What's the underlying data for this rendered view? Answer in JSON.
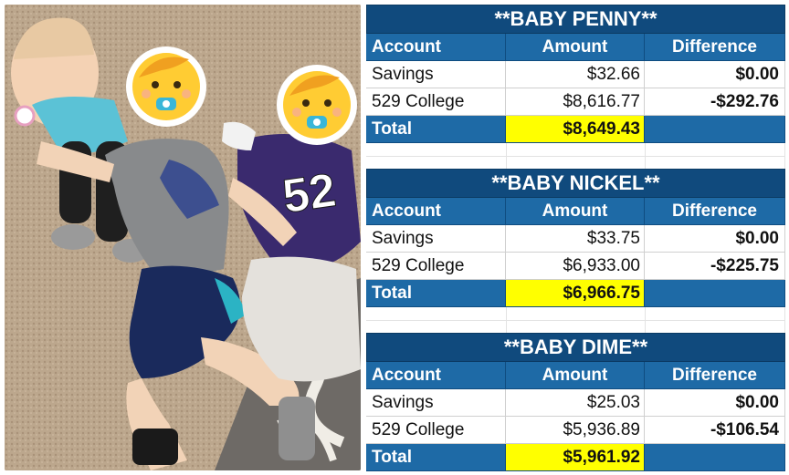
{
  "tables": [
    {
      "title": "**BABY PENNY**",
      "headers": [
        "Account",
        "Amount",
        "Difference"
      ],
      "rows": [
        {
          "account": "Savings",
          "amount": "$32.66",
          "difference": "$0.00"
        },
        {
          "account": "529 College",
          "amount": "$8,616.77",
          "difference": "-$292.76"
        }
      ],
      "total": {
        "label": "Total",
        "amount": "$8,649.43"
      }
    },
    {
      "title": "**BABY NICKEL**",
      "headers": [
        "Account",
        "Amount",
        "Difference"
      ],
      "rows": [
        {
          "account": "Savings",
          "amount": "$33.75",
          "difference": "$0.00"
        },
        {
          "account": "529 College",
          "amount": "$6,933.00",
          "difference": "-$225.75"
        }
      ],
      "total": {
        "label": "Total",
        "amount": "$6,966.75"
      }
    },
    {
      "title": "**BABY DIME**",
      "headers": [
        "Account",
        "Amount",
        "Difference"
      ],
      "rows": [
        {
          "account": "Savings",
          "amount": "$25.03",
          "difference": "$0.00"
        },
        {
          "account": "529 College",
          "amount": "$5,936.89",
          "difference": "-$106.54"
        }
      ],
      "total": {
        "label": "Total",
        "amount": "$5,961.92"
      }
    }
  ],
  "photo": {
    "jersey_number": "52",
    "emoji_faces": [
      "baby-emoji-icon",
      "baby-emoji-icon"
    ]
  },
  "colors": {
    "header_blue": "#1e6aa6",
    "title_blue": "#104a7d",
    "total_highlight": "#ffff00",
    "negative_red": "#e01010"
  }
}
